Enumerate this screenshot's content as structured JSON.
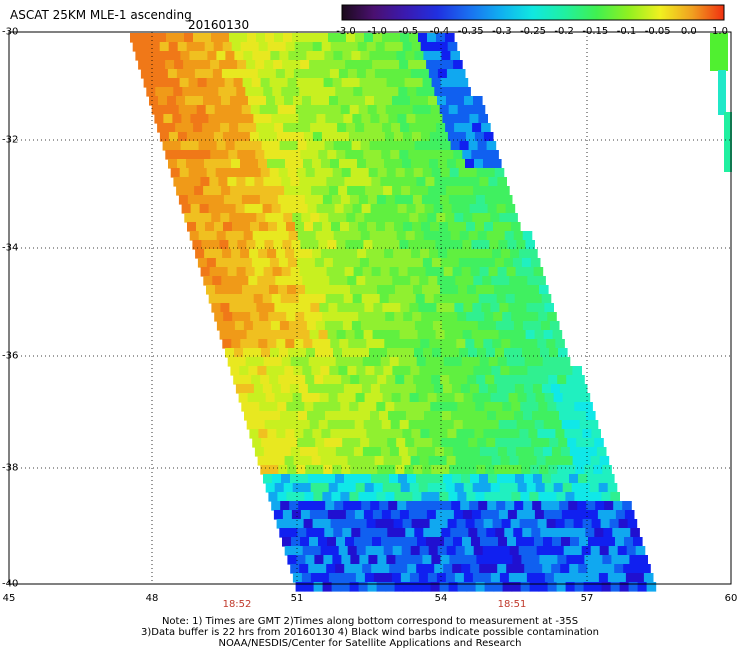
{
  "title": "ASCAT 25KM MLE-1 ascending",
  "date": "20160130",
  "colorbar": {
    "labels": [
      "-3.0",
      "-1.0",
      "-0.5",
      "-0.4",
      "-0.35",
      "-0.3",
      "-0.25",
      "-0.2",
      "-0.15",
      "-0.1",
      "-0.05",
      "0.0",
      "1.0"
    ],
    "colors": [
      "#1a0a1a",
      "#4a1070",
      "#3a1ab0",
      "#2030e0",
      "#1a70f0",
      "#10b0f0",
      "#10e8e0",
      "#20f0a0",
      "#40f050",
      "#90f020",
      "#f0f020",
      "#f0a020",
      "#f03010"
    ]
  },
  "axes": {
    "lat_labels": [
      "-30",
      "-32",
      "-34",
      "-36",
      "-38",
      "-40"
    ],
    "lon_labels": [
      "45",
      "48",
      "51",
      "54",
      "57",
      "60"
    ]
  },
  "times": [
    "18:52",
    "18:51"
  ],
  "notes": [
    "Note: 1) Times are GMT 2)Times along bottom correspond to measurement at -35S",
    "3)Data buffer is 22 hrs from 20160130 4) Black wind barbs indicate possible contamination",
    "NOAA/NESDIS/Center for Satellite Applications and Research"
  ]
}
